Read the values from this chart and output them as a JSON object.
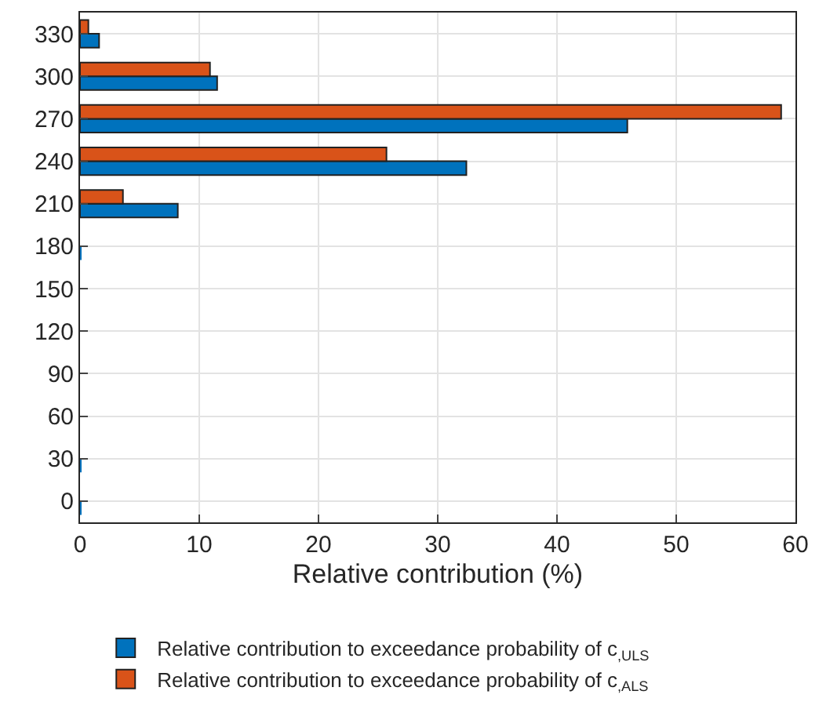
{
  "chart_data": {
    "type": "bar",
    "orientation": "horizontal",
    "xlabel": "Relative contribution (%)",
    "categories": [
      "330",
      "300",
      "270",
      "240",
      "210",
      "180",
      "150",
      "120",
      "90",
      "60",
      "30",
      "0"
    ],
    "series": [
      {
        "name": "Relative contribution to exceedance probability of c$_{,ULS}$",
        "color": "#0072bd",
        "values": [
          1.6,
          11.5,
          45.9,
          32.4,
          8.2,
          0.1,
          0,
          0,
          0,
          0,
          0.1,
          0.1
        ]
      },
      {
        "name": "Relative contribution to exceedance probability of c$_{,ALS}$",
        "color": "#d95319",
        "values": [
          0.7,
          10.9,
          58.8,
          25.7,
          3.6,
          0,
          0,
          0,
          0,
          0,
          0,
          0
        ]
      }
    ],
    "xlim": [
      0,
      60
    ],
    "xticks": [
      0,
      10,
      20,
      30,
      40,
      50,
      60
    ],
    "grid": true,
    "legend": "bottom"
  }
}
